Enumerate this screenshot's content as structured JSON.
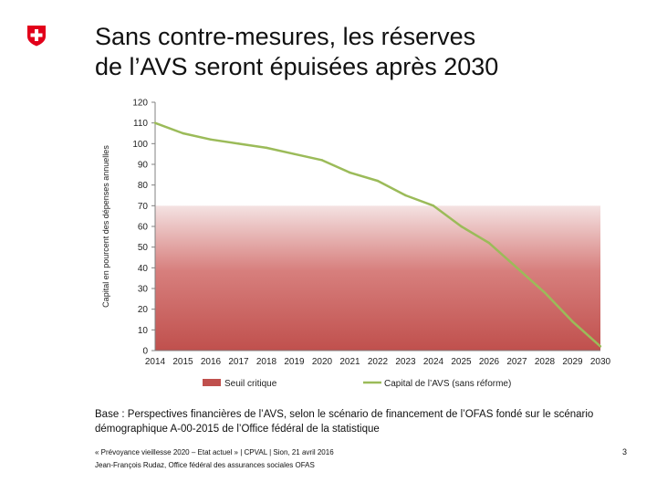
{
  "slide": {
    "title_line1": "Sans contre-mesures, les réserves",
    "title_line2": "de l’AVS seront épuisées après 2030",
    "footnote_line1": "Base : Perspectives financières de l’AVS, selon le scénario de financement de l’OFAS fondé sur le scénario",
    "footnote_line2": "démographique A-00-2015 de l’Office fédéral de la statistique",
    "footer_line1": "« Prévoyance vieillesse 2020 – Etat actuel » | CPVAL | Sion, 21 avril 2016",
    "footer_line2": "Jean-François Rudaz, Office fédéral des assurances sociales OFAS",
    "page_number": "3",
    "logo": "swiss-cross-icon"
  },
  "chart_data": {
    "type": "line",
    "title": "",
    "ylabel": "Capital en pourcent des dépenses annuelles",
    "xlabel": "",
    "ylim": [
      0,
      120
    ],
    "yticks": [
      0,
      10,
      20,
      30,
      40,
      50,
      60,
      70,
      80,
      90,
      100,
      110,
      120
    ],
    "categories": [
      "2014",
      "2015",
      "2016",
      "2017",
      "2018",
      "2019",
      "2020",
      "2021",
      "2022",
      "2023",
      "2024",
      "2025",
      "2026",
      "2027",
      "2028",
      "2029",
      "2030"
    ],
    "series": [
      {
        "name": "Seuil critique",
        "kind": "area",
        "color": "#c0504d",
        "values": [
          70,
          70,
          70,
          70,
          70,
          70,
          70,
          70,
          70,
          70,
          70,
          70,
          70,
          70,
          70,
          70,
          70
        ]
      },
      {
        "name": "Capital de l’AVS (sans réforme)",
        "kind": "line",
        "color": "#9bbb59",
        "values": [
          110,
          105,
          102,
          100,
          98,
          95,
          92,
          86,
          82,
          75,
          70,
          60,
          52,
          40,
          28,
          14,
          2
        ]
      }
    ],
    "grid": false,
    "legend": "bottom"
  }
}
